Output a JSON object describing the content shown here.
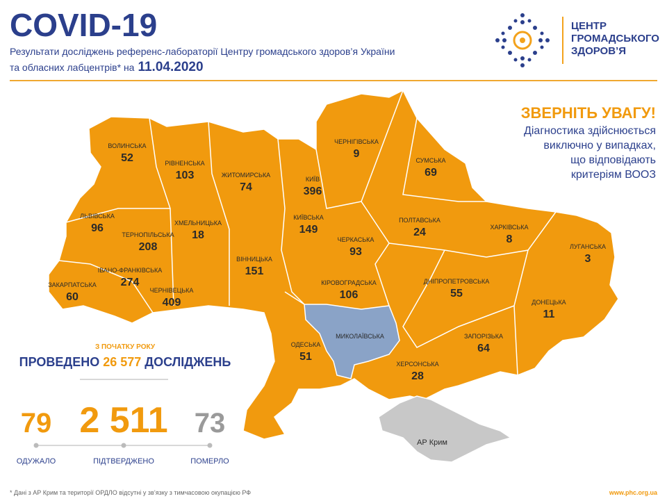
{
  "header": {
    "title": "COVID-19",
    "subtitle_line1": "Результати досліджень референс-лабораторії Центру громадського здоров’я України",
    "subtitle_line2": "та обласних лабцентрів* на",
    "date": "11.04.2020"
  },
  "logo": {
    "lines": [
      "ЦЕНТР",
      "ГРОМАДСЬКОГО",
      "ЗДОРОВ’Я"
    ]
  },
  "notice": {
    "title": "ЗВЕРНІТЬ УВАГУ!",
    "lines": [
      "Діагностика здійснюється",
      "виключно у випадках,",
      "що відповідають",
      "критеріям ВООЗ"
    ]
  },
  "regions": [
    {
      "name": "ВОЛИНСЬКА",
      "value": "52"
    },
    {
      "name": "РІВНЕНСЬКА",
      "value": "103"
    },
    {
      "name": "ЖИТОМИРСЬКА",
      "value": "74"
    },
    {
      "name": "КИЇВ",
      "value": "396"
    },
    {
      "name": "ЧЕРНІГІВСЬКА",
      "value": "9"
    },
    {
      "name": "СУМСЬКА",
      "value": "69"
    },
    {
      "name": "ЛЬВІВСЬКА",
      "value": "96"
    },
    {
      "name": "ТЕРНОПІЛЬСЬКА",
      "value": "208"
    },
    {
      "name": "ХМЕЛЬНИЦЬКА",
      "value": "18"
    },
    {
      "name": "КИЇВСЬКА",
      "value": "149"
    },
    {
      "name": "ПОЛТАВСЬКА",
      "value": "24"
    },
    {
      "name": "ХАРКІВСЬКА",
      "value": "8"
    },
    {
      "name": "ЛУГАНСЬКА",
      "value": "3"
    },
    {
      "name": "ЧЕРКАСЬКА",
      "value": "93"
    },
    {
      "name": "ВІННИЦЬКА",
      "value": "151"
    },
    {
      "name": "ІВАНО-ФРАНКІВСЬКА",
      "value": "274"
    },
    {
      "name": "ЗАКАРПАТСЬКА",
      "value": "60"
    },
    {
      "name": "ЧЕРНІВЕЦЬКА",
      "value": "409"
    },
    {
      "name": "КІРОВОГРАДСЬКА",
      "value": "106"
    },
    {
      "name": "ДНІПРОПЕТРОВСЬКА",
      "value": "55"
    },
    {
      "name": "ДОНЕЦЬКА",
      "value": "11"
    },
    {
      "name": "ОДЕСЬКА",
      "value": "51"
    },
    {
      "name": "МИКОЛАЇВСЬКА"
    },
    {
      "name": "ЗАПОРІЗЬКА",
      "value": "64"
    },
    {
      "name": "ХЕРСОНСЬКА",
      "value": "28"
    }
  ],
  "crimea": "АР Крим",
  "summary": {
    "since": "З ПОЧАТКУ РОКУ",
    "prefix": "ПРОВЕДЕНО",
    "tests": "26 577",
    "suffix": "ДОСЛІДЖЕНЬ"
  },
  "stats": [
    {
      "value": "79",
      "label": "ОДУЖАЛО"
    },
    {
      "value": "2 511",
      "label": "ПІДТВЕРДЖЕНО"
    },
    {
      "value": "73",
      "label": "ПОМЕРЛО"
    }
  ],
  "footer": {
    "note": "* Дані з АР Крим та території ОРДЛО відсутні у зв’язку з тимчасовою окупацією РФ",
    "url": "www.phc.org.ua"
  }
}
